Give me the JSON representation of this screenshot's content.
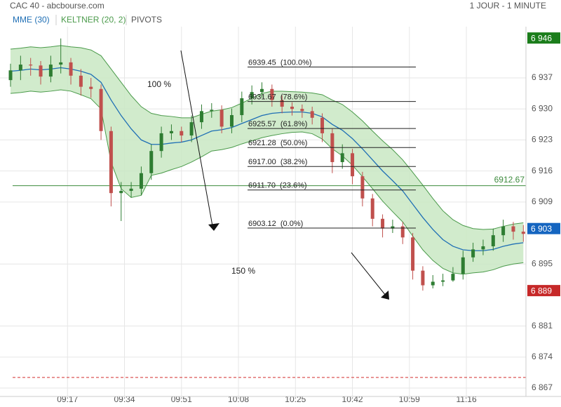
{
  "chart_data": {
    "type": "candlestick",
    "title": "CAC 40 - abcbourse.com",
    "timeframe": "1 JOUR - 1 MINUTE",
    "up_color": "#2e7d32",
    "down_color": "#c0504d",
    "x": [
      540,
      543,
      546,
      549,
      552,
      555,
      558,
      561,
      564,
      567,
      570,
      573,
      576,
      579,
      582,
      585,
      588,
      591,
      594,
      597,
      600,
      603,
      606,
      609,
      612,
      615,
      618,
      621,
      624,
      627,
      630,
      633,
      636,
      639,
      642,
      645,
      648,
      651,
      654,
      657,
      660,
      663,
      666,
      669,
      672,
      675,
      678,
      681,
      684,
      687,
      690,
      693
    ],
    "open": [
      6936.5,
      6938.7,
      6940.0,
      6939.8,
      6937.3,
      6940.0,
      6940.5,
      6937.5,
      6935.0,
      6934.5,
      6925.0,
      6911.0,
      6911.5,
      6912.0,
      6915.5,
      6920.5,
      6924.5,
      6925.0,
      6924.0,
      6927.0,
      6929.5,
      6929.8,
      6926.0,
      6928.6,
      6932.4,
      6933.8,
      6934.5,
      6932.0,
      6930.5,
      6930.0,
      6929.5,
      6928.0,
      6924.5,
      6918.0,
      6920.0,
      6914.8,
      6909.8,
      6905.2,
      6903.0,
      6903.5,
      6901.0,
      6893.5,
      6890.2,
      6891.0,
      6891.3,
      6892.8,
      6896.5,
      6898.3,
      6899.0,
      6901.5,
      6903.5,
      6902.3
    ],
    "high": [
      6940.2,
      6942.0,
      6941.5,
      6940.8,
      6942.0,
      6945.9,
      6941.5,
      6939.0,
      6937.0,
      6935.5,
      6926.0,
      6913.5,
      6913.5,
      6917.0,
      6922.0,
      6926.0,
      6926.5,
      6926.0,
      6928.5,
      6931.0,
      6931.3,
      6930.8,
      6930.1,
      6933.9,
      6935.3,
      6936.0,
      6935.5,
      6933.0,
      6931.5,
      6931.0,
      6930.5,
      6929.0,
      6925.5,
      6922.0,
      6921.0,
      6915.8,
      6910.8,
      6906.2,
      6905.0,
      6904.5,
      6902.0,
      6894.5,
      6892.5,
      6892.8,
      6894.3,
      6898.0,
      6899.8,
      6900.5,
      6903.0,
      6905.0,
      6904.5,
      6903.8
    ],
    "low": [
      6935.0,
      6936.5,
      6937.5,
      6935.5,
      6936.0,
      6938.0,
      6935.5,
      6933.0,
      6932.5,
      6923.0,
      6908.0,
      6904.7,
      6910.0,
      6910.5,
      6914.0,
      6919.0,
      6923.0,
      6922.5,
      6922.5,
      6925.5,
      6928.0,
      6924.5,
      6924.5,
      6927.0,
      6931.0,
      6932.5,
      6930.5,
      6929.0,
      6928.5,
      6928.0,
      6926.5,
      6922.5,
      6915.5,
      6916.5,
      6913.0,
      6908.0,
      6903.5,
      6901.0,
      6902.0,
      6899.5,
      6891.5,
      6889.0,
      6889.5,
      6890.0,
      6891.0,
      6891.5,
      6895.5,
      6897.0,
      6898.0,
      6900.0,
      6900.5,
      6900.0
    ],
    "close": [
      6938.7,
      6940.0,
      6939.8,
      6937.3,
      6940.0,
      6940.5,
      6937.5,
      6935.0,
      6934.5,
      6925.0,
      6911.0,
      6911.5,
      6912.0,
      6915.5,
      6920.5,
      6924.5,
      6925.0,
      6924.0,
      6927.0,
      6929.5,
      6929.8,
      6926.0,
      6928.6,
      6932.4,
      6933.8,
      6934.5,
      6932.0,
      6930.5,
      6930.0,
      6929.5,
      6928.0,
      6924.5,
      6918.0,
      6920.0,
      6914.8,
      6909.8,
      6905.2,
      6903.0,
      6903.5,
      6901.0,
      6893.5,
      6890.2,
      6891.0,
      6891.3,
      6892.8,
      6896.5,
      6898.3,
      6899.0,
      6901.5,
      6903.5,
      6902.3,
      6901.8
    ],
    "series": [
      {
        "name": "MME (30)",
        "color": "#1f6fb5",
        "values": [
          6938.5,
          6938.7,
          6939,
          6938.8,
          6939,
          6939.3,
          6939,
          6938.5,
          6937.8,
          6936,
          6932,
          6928.5,
          6925.5,
          6923,
          6922,
          6922,
          6922.3,
          6922.5,
          6923,
          6924,
          6925,
          6925.3,
          6925.8,
          6926.7,
          6927.6,
          6928.5,
          6929,
          6929.2,
          6929.3,
          6929.3,
          6929,
          6928.2,
          6926.5,
          6925.2,
          6923.3,
          6921,
          6918.5,
          6916,
          6913.8,
          6911.5,
          6908.5,
          6905.5,
          6902.8,
          6900.5,
          6899,
          6898.2,
          6898,
          6898,
          6898.3,
          6899,
          6899.5,
          6899.8
        ]
      },
      {
        "name": "KELTNER (20, 2)",
        "color": "#4a9a4a",
        "fill": "#c9e7c3",
        "upper": [
          6943.5,
          6943.7,
          6944,
          6943.8,
          6944,
          6944.3,
          6944,
          6943.8,
          6943.3,
          6942,
          6939,
          6936,
          6933,
          6930.5,
          6929,
          6928.5,
          6928.3,
          6928,
          6928,
          6928.8,
          6929.5,
          6929.8,
          6930.3,
          6931.3,
          6932.4,
          6933.5,
          6934,
          6934,
          6933.9,
          6933.8,
          6933.6,
          6933.2,
          6932,
          6931,
          6929.3,
          6927.3,
          6925,
          6922.8,
          6920.8,
          6918.5,
          6915.7,
          6912.8,
          6909.8,
          6907,
          6905,
          6903.7,
          6903,
          6902.8,
          6902.9,
          6903.5,
          6904,
          6904.3
        ],
        "lower": [
          6933.5,
          6933.7,
          6934,
          6933.8,
          6934,
          6934.3,
          6934,
          6933.2,
          6932.3,
          6930,
          6918,
          6912,
          6910,
          6910.5,
          6915,
          6915.5,
          6916.3,
          6917,
          6918,
          6919.2,
          6920.5,
          6920.8,
          6921.3,
          6922.1,
          6922.8,
          6923.5,
          6924,
          6924.4,
          6924.7,
          6924.8,
          6924.4,
          6923.2,
          6921,
          6919.4,
          6917.3,
          6914.7,
          6912,
          6909.2,
          6906.8,
          6904.5,
          6901.3,
          6898.2,
          6895.8,
          6894,
          6893,
          6892.7,
          6893,
          6893.2,
          6893.7,
          6894.5,
          6895,
          6895.3
        ]
      }
    ],
    "legend_extra": "PIVOTS",
    "xlim": [
      536.86,
      693.77
    ],
    "xticks": [
      {
        "value": 557,
        "label": "09:17"
      },
      {
        "value": 574,
        "label": "09:34"
      },
      {
        "value": 591,
        "label": "09:51"
      },
      {
        "value": 608,
        "label": "10:08"
      },
      {
        "value": 625,
        "label": "10:25"
      },
      {
        "value": 642,
        "label": "10:42"
      },
      {
        "value": 659,
        "label": "10:59"
      },
      {
        "value": 676,
        "label": "11:16"
      }
    ],
    "ylim": [
      6865.9,
      6947.45
    ],
    "yticks": [
      {
        "value": 6867,
        "label": "6 867"
      },
      {
        "value": 6874,
        "label": "6 874"
      },
      {
        "value": 6881,
        "label": "6 881"
      },
      {
        "value": 6895,
        "label": "6 895"
      },
      {
        "value": 6909,
        "label": "6 909"
      },
      {
        "value": 6916,
        "label": "6 916"
      },
      {
        "value": 6923,
        "label": "6 923"
      },
      {
        "value": 6930,
        "label": "6 930"
      },
      {
        "value": 6937,
        "label": "6 937"
      }
    ],
    "grid": true,
    "fib_levels": [
      {
        "value": 6939.45,
        "label": "6939.45  (100.0%)"
      },
      {
        "value": 6931.67,
        "label": "6931.67  (78.6%)"
      },
      {
        "value": 6925.57,
        "label": "6925.57  (61.8%)"
      },
      {
        "value": 6921.28,
        "label": "6921.28  (50.0%)"
      },
      {
        "value": 6917.0,
        "label": "6917.00  (38.2%)"
      },
      {
        "value": 6911.7,
        "label": "6911.70  (23.6%)"
      },
      {
        "value": 6903.12,
        "label": "6903.12  (0.0%)"
      }
    ],
    "hline": {
      "value": 6912.67,
      "color": "#3d8b3d"
    },
    "dashed_line": {
      "value": 6869.4,
      "color": "#d32f2f"
    },
    "price_tags": [
      {
        "value": 6946,
        "label": "6 946",
        "color": "#1b7d1b"
      },
      {
        "value": 6903,
        "label": "6 903",
        "color": "#1565c0"
      },
      {
        "value": 6889,
        "label": "6 889",
        "color": "#c62828"
      }
    ],
    "annotations": [
      "100 %",
      "150 %"
    ]
  }
}
